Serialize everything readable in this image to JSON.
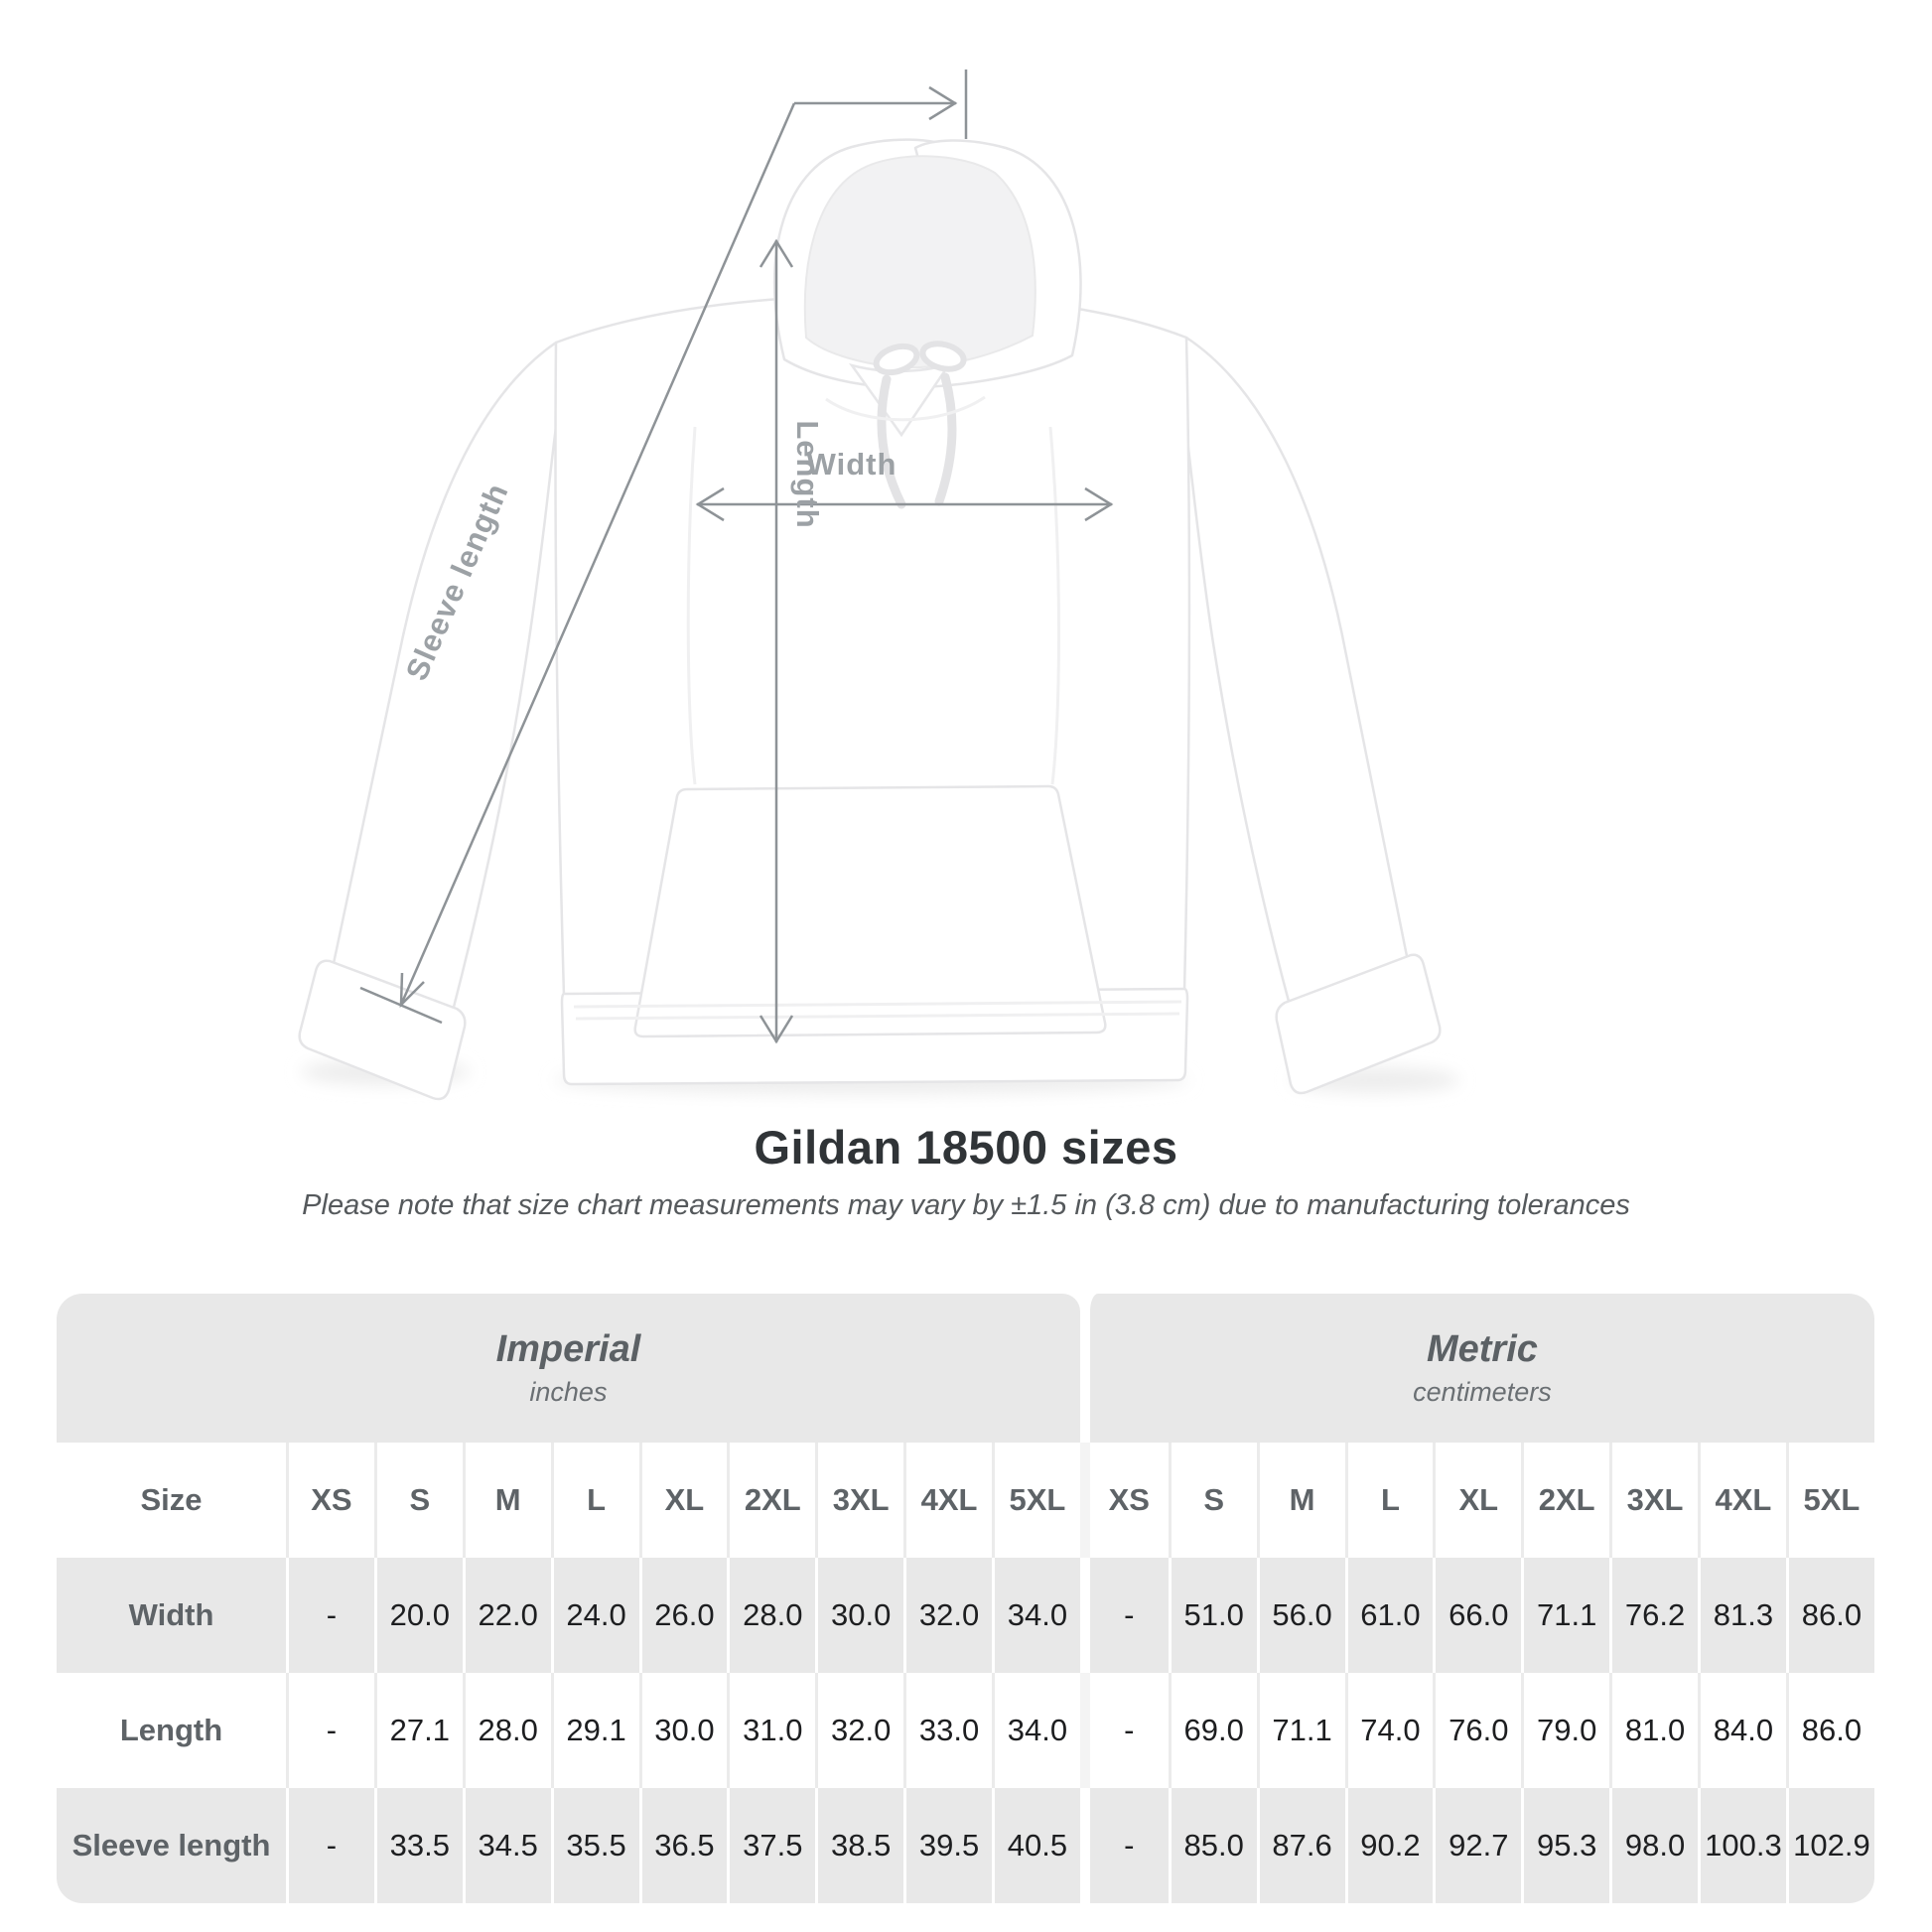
{
  "illustration": {
    "labels": {
      "length": "Length",
      "width": "Width",
      "sleeve_length": "Sleeve length"
    }
  },
  "header": {
    "title": "Gildan 18500 sizes",
    "subtitle": "Please note that size chart measurements may vary by ±1.5 in (3.8 cm) due to manufacturing tolerances"
  },
  "table": {
    "size_label": "Size",
    "groups": [
      {
        "label": "Imperial",
        "unit": "inches"
      },
      {
        "label": "Metric",
        "unit": "centimeters"
      }
    ],
    "sizes": [
      "XS",
      "S",
      "M",
      "L",
      "XL",
      "2XL",
      "3XL",
      "4XL",
      "5XL"
    ],
    "rows": [
      {
        "label": "Width",
        "imperial": [
          "-",
          "20.0",
          "22.0",
          "24.0",
          "26.0",
          "28.0",
          "30.0",
          "32.0",
          "34.0"
        ],
        "metric": [
          "-",
          "51.0",
          "56.0",
          "61.0",
          "66.0",
          "71.1",
          "76.2",
          "81.3",
          "86.0"
        ]
      },
      {
        "label": "Length",
        "imperial": [
          "-",
          "27.1",
          "28.0",
          "29.1",
          "30.0",
          "31.0",
          "32.0",
          "33.0",
          "34.0"
        ],
        "metric": [
          "-",
          "69.0",
          "71.1",
          "74.0",
          "76.0",
          "79.0",
          "81.0",
          "84.0",
          "86.0"
        ]
      },
      {
        "label": "Sleeve length",
        "imperial": [
          "-",
          "33.5",
          "34.5",
          "35.5",
          "36.5",
          "37.5",
          "38.5",
          "39.5",
          "40.5"
        ],
        "metric": [
          "-",
          "85.0",
          "87.6",
          "90.2",
          "92.7",
          "95.3",
          "98.0",
          "100.3",
          "102.9"
        ]
      }
    ]
  },
  "chart_data": {
    "type": "table",
    "title": "Gildan 18500 sizes",
    "note": "Please note that size chart measurements may vary by ±1.5 in (3.8 cm) due to manufacturing tolerances",
    "column_groups": [
      "Imperial (inches)",
      "Metric (centimeters)"
    ],
    "columns": [
      "Size",
      "XS",
      "S",
      "M",
      "L",
      "XL",
      "2XL",
      "3XL",
      "4XL",
      "5XL",
      "XS",
      "S",
      "M",
      "L",
      "XL",
      "2XL",
      "3XL",
      "4XL",
      "5XL"
    ],
    "rows": [
      [
        "Width",
        "-",
        20.0,
        22.0,
        24.0,
        26.0,
        28.0,
        30.0,
        32.0,
        34.0,
        "-",
        51.0,
        56.0,
        61.0,
        66.0,
        71.1,
        76.2,
        81.3,
        86.0
      ],
      [
        "Length",
        "-",
        27.1,
        28.0,
        29.1,
        30.0,
        31.0,
        32.0,
        33.0,
        34.0,
        "-",
        69.0,
        71.1,
        74.0,
        76.0,
        79.0,
        81.0,
        84.0,
        86.0
      ],
      [
        "Sleeve length",
        "-",
        33.5,
        34.5,
        35.5,
        36.5,
        37.5,
        38.5,
        39.5,
        40.5,
        "-",
        85.0,
        87.6,
        90.2,
        92.7,
        95.3,
        98.0,
        100.3,
        102.9
      ]
    ]
  },
  "colors": {
    "band_gray": "#e8e8e8",
    "value_text": "#1d1e20",
    "label_text": "#5e6367",
    "title_text": "#303437",
    "subtitle_text": "#55595c",
    "arrow": "#8e9397",
    "measure_label": "#9ca1a5"
  }
}
